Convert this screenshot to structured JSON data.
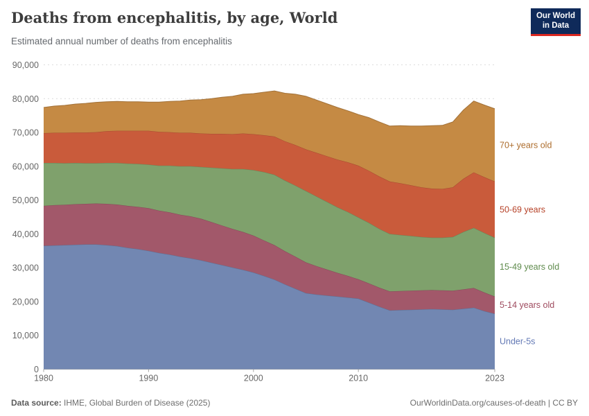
{
  "header": {
    "title": "Deaths from encephalitis, by age, World",
    "subtitle": "Estimated annual number of deaths from encephalitis",
    "logo": {
      "line1": "Our World",
      "line2": "in Data"
    }
  },
  "footer": {
    "datasource_label": "Data source:",
    "datasource_value": " IHME, Global Burden of Disease (2025)",
    "link": "OurWorldinData.org/causes-of-death",
    "divider": " | ",
    "license": "CC BY"
  },
  "colors": {
    "logo_background": "#0f2a5a",
    "logo_underline": "#dc2820",
    "axis_text": "#666666",
    "gridline": "#dcdcdc",
    "zero_line": "#a3a3a3"
  },
  "chart_data": {
    "type": "area",
    "stacked": true,
    "title": "Deaths from encephalitis, by age, World",
    "subtitle": "Estimated annual number of deaths from encephalitis",
    "xlabel": "",
    "ylabel": "",
    "grid": "horizontal-dashed",
    "legend_position": "right",
    "ylim": [
      0,
      90000
    ],
    "yticks": [
      0,
      10000,
      20000,
      30000,
      40000,
      50000,
      60000,
      70000,
      80000,
      90000
    ],
    "ytick_labels": [
      "0",
      "10,000",
      "20,000",
      "30,000",
      "40,000",
      "50,000",
      "60,000",
      "70,000",
      "80,000",
      "90,000"
    ],
    "xticks": [
      1980,
      1990,
      2000,
      2010,
      2023
    ],
    "xtick_labels": [
      "1980",
      "1990",
      "2000",
      "2010",
      "2023"
    ],
    "x": [
      1980,
      1981,
      1982,
      1983,
      1984,
      1985,
      1986,
      1987,
      1988,
      1989,
      1990,
      1991,
      1992,
      1993,
      1994,
      1995,
      1996,
      1997,
      1998,
      1999,
      2000,
      2001,
      2002,
      2003,
      2004,
      2005,
      2006,
      2007,
      2008,
      2009,
      2010,
      2011,
      2012,
      2013,
      2014,
      2015,
      2016,
      2017,
      2018,
      2019,
      2020,
      2021,
      2022,
      2023
    ],
    "series": [
      {
        "name": "Under-5s",
        "color": "#7287b2",
        "label_color": "#6379b5",
        "values": [
          36500,
          36600,
          36700,
          36800,
          36900,
          36900,
          36700,
          36400,
          35900,
          35500,
          35000,
          34400,
          33900,
          33300,
          32800,
          32200,
          31500,
          30800,
          30100,
          29400,
          28600,
          27600,
          26500,
          25100,
          23800,
          22500,
          22100,
          21800,
          21500,
          21200,
          20900,
          19700,
          18500,
          17400,
          17500,
          17600,
          17700,
          17800,
          17700,
          17600,
          17900,
          18200,
          17200,
          16400
        ]
      },
      {
        "name": "5-14 years old",
        "color": "#a2586a",
        "label_color": "#9e4a5e",
        "values": [
          11800,
          11900,
          11900,
          12000,
          12000,
          12100,
          12200,
          12300,
          12400,
          12500,
          12600,
          12500,
          12500,
          12400,
          12400,
          12300,
          12000,
          11700,
          11400,
          11200,
          10900,
          10500,
          10200,
          9800,
          9500,
          9100,
          8400,
          7700,
          7000,
          6400,
          5700,
          5700,
          5600,
          5600,
          5600,
          5600,
          5600,
          5600,
          5600,
          5600,
          5700,
          5800,
          5500,
          5100
        ]
      },
      {
        "name": "15-49 years old",
        "color": "#7fa16c",
        "label_color": "#5f8b4d",
        "values": [
          12700,
          12500,
          12300,
          12200,
          12000,
          11900,
          12100,
          12300,
          12500,
          12700,
          12900,
          13300,
          13800,
          14300,
          14800,
          15300,
          16100,
          16900,
          17700,
          18600,
          19400,
          20200,
          20800,
          20900,
          21000,
          21100,
          20600,
          20000,
          19400,
          18900,
          18300,
          17900,
          17400,
          17000,
          16600,
          16200,
          15800,
          15500,
          15600,
          15900,
          17000,
          17800,
          17600,
          17400
        ]
      },
      {
        "name": "50-69 years",
        "color": "#c95b3b",
        "label_color": "#b64228",
        "values": [
          8800,
          8900,
          9000,
          9000,
          9100,
          9200,
          9400,
          9500,
          9700,
          9800,
          10000,
          10000,
          9900,
          9900,
          9900,
          9900,
          10000,
          10200,
          10300,
          10500,
          10600,
          10900,
          11300,
          11600,
          12000,
          12300,
          12900,
          13500,
          14100,
          14700,
          15300,
          15400,
          15500,
          15500,
          15300,
          15000,
          14700,
          14500,
          14400,
          14700,
          15700,
          16400,
          16500,
          16600
        ]
      },
      {
        "name": "70+ years old",
        "color": "#c58a44",
        "label_color": "#ad6d2d",
        "values": [
          7600,
          7900,
          8100,
          8400,
          8600,
          8800,
          8700,
          8700,
          8600,
          8600,
          8500,
          8800,
          9100,
          9400,
          9700,
          10000,
          10400,
          10800,
          11200,
          11600,
          12000,
          12700,
          13500,
          14200,
          15000,
          15700,
          15600,
          15500,
          15400,
          15200,
          15100,
          15700,
          16100,
          16400,
          17000,
          17500,
          18100,
          18600,
          18800,
          19300,
          20300,
          21100,
          21300,
          21500
        ]
      }
    ]
  }
}
